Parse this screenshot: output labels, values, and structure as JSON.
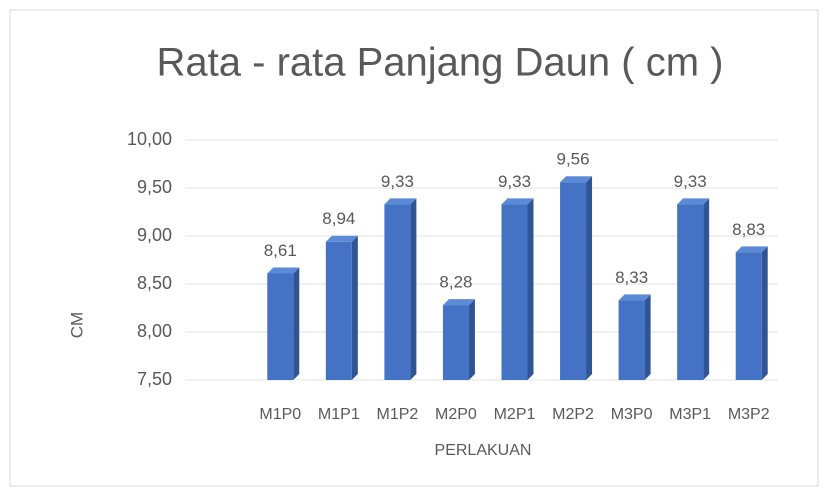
{
  "chart_data": {
    "type": "bar",
    "title": "Rata - rata Panjang Daun ( cm )",
    "x_label": "PERLAKUAN",
    "y_label": "CM",
    "categories": [
      "M1P0",
      "M1P1",
      "M1P2",
      "M2P0",
      "M2P1",
      "M2P2",
      "M3P0",
      "M3P1",
      "M3P2"
    ],
    "values": [
      8.61,
      8.94,
      9.33,
      8.28,
      9.33,
      9.56,
      8.33,
      9.33,
      8.83
    ],
    "value_labels": [
      "8,61",
      "8,94",
      "9,33",
      "8,28",
      "9,33",
      "9,56",
      "8,33",
      "9,33",
      "8,83"
    ],
    "color": "#4472c4",
    "ylim": [
      7.5,
      10
    ],
    "yticks": [
      {
        "value": 7.5,
        "label": "7,50"
      },
      {
        "value": 8,
        "label": "8,00"
      },
      {
        "value": 8.5,
        "label": "8,50"
      },
      {
        "value": 9,
        "label": "9,00"
      },
      {
        "value": 9.5,
        "label": "9,50"
      },
      {
        "value": 10,
        "label": "10,00"
      }
    ],
    "grid": true
  }
}
